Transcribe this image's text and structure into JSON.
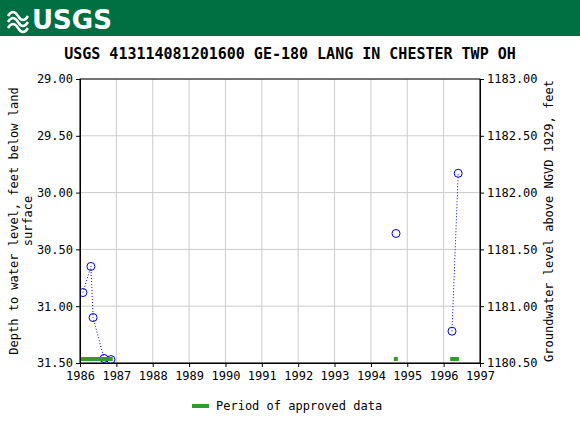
{
  "chart_data": {
    "type": "scatter",
    "logo_text": "USGS",
    "title": "USGS 413114081201600 GE-180 LANG IN CHESTER TWP OH",
    "ylabel": [
      "Depth to water level, feet below land",
      "surface"
    ],
    "y2label": "Groundwater level above NGVD 1929, feet",
    "xlim": [
      1986,
      1997
    ],
    "xticks": [
      1986,
      1987,
      1988,
      1989,
      1990,
      1991,
      1992,
      1993,
      1994,
      1995,
      1996,
      1997
    ],
    "ylim": [
      31.5,
      29.0
    ],
    "yticks": [
      {
        "value": 29.0,
        "label": "29.00"
      },
      {
        "value": 29.5,
        "label": "29.50"
      },
      {
        "value": 30.0,
        "label": "30.00"
      },
      {
        "value": 30.5,
        "label": "30.50"
      },
      {
        "value": 31.0,
        "label": "31.00"
      },
      {
        "value": 31.5,
        "label": "31.50"
      }
    ],
    "y2lim": [
      1180.5,
      1183.0
    ],
    "y2ticks": [
      {
        "value": 1180.5,
        "label": "1180.50"
      },
      {
        "value": 1181.0,
        "label": "1181.00"
      },
      {
        "value": 1181.5,
        "label": "1181.50"
      },
      {
        "value": 1182.0,
        "label": "1182.00"
      },
      {
        "value": 1182.5,
        "label": "1182.50"
      },
      {
        "value": 1183.0,
        "label": "1183.00"
      }
    ],
    "grid": true,
    "legend": "bottom",
    "series": [
      {
        "type": "scatter",
        "color": "#0000cc",
        "marker": "circle",
        "line_style": "dotted",
        "x": [
          1986.08,
          1986.3,
          1986.36,
          1986.66,
          1986.85,
          null,
          1994.69,
          null,
          1996.23,
          1996.4
        ],
        "values": [
          30.88,
          30.65,
          31.1,
          31.46,
          31.47,
          null,
          30.36,
          null,
          31.22,
          29.83
        ]
      },
      {
        "name": "Period of approved data",
        "type": "span",
        "color": "#339933",
        "ranges": [
          [
            1986.03,
            1986.9
          ],
          [
            1994.63,
            1994.74
          ],
          [
            1996.18,
            1996.42
          ]
        ]
      }
    ]
  }
}
